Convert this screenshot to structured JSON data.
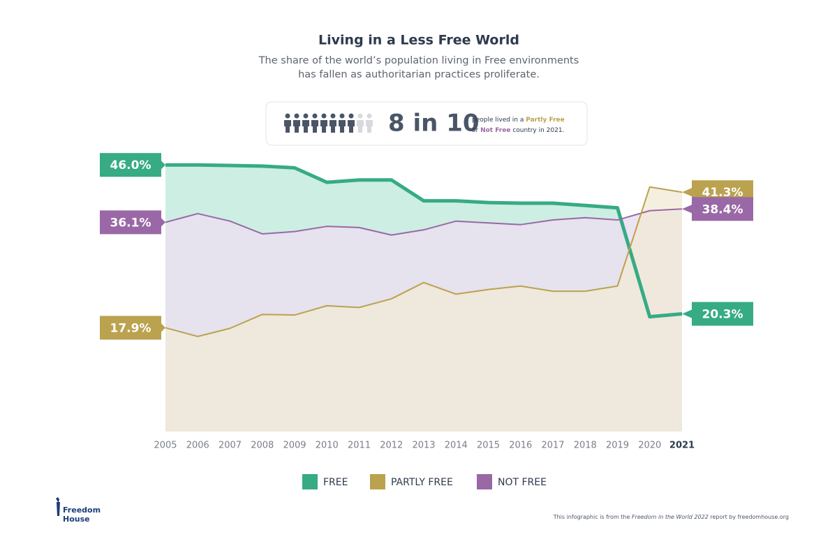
{
  "chart_data": {
    "type": "area-line",
    "title": "Living in a Less Free World",
    "subtitle": [
      "The share of the world’s population living in Free environments",
      "has fallen as authoritarian practices proliferate."
    ],
    "callout": {
      "highlight": "8 in 10",
      "icons_filled": 8,
      "icons_total": 10,
      "text_line1": [
        "people lived in a ",
        "Partly Free"
      ],
      "text_line2": [
        "or ",
        "Not Free",
        " country in 2021."
      ]
    },
    "categories": [
      "2005",
      "2006",
      "2007",
      "2008",
      "2009",
      "2010",
      "2011",
      "2012",
      "2013",
      "2014",
      "2015",
      "2016",
      "2017",
      "2018",
      "2019",
      "2020",
      "2021"
    ],
    "ylim": [
      0,
      50
    ],
    "series": [
      {
        "name": "FREE",
        "color": "#36ab84",
        "fill": "#cdeee3",
        "values": [
          46.0,
          46.0,
          45.9,
          45.8,
          45.5,
          43.0,
          43.4,
          43.4,
          39.8,
          39.8,
          39.5,
          39.4,
          39.4,
          39.0,
          38.6,
          19.8,
          20.3
        ],
        "value_labels": [
          "46.0%",
          null,
          null,
          null,
          null,
          null,
          null,
          null,
          null,
          null,
          null,
          null,
          null,
          null,
          null,
          null,
          "20.3%"
        ]
      },
      {
        "name": "PARTLY FREE",
        "color": "#bba24f",
        "fill": "#f1ead6",
        "values": [
          17.9,
          16.4,
          17.8,
          20.2,
          20.1,
          21.7,
          21.4,
          22.9,
          25.7,
          23.7,
          24.5,
          25.1,
          24.2,
          24.2,
          25.1,
          42.2,
          41.3
        ],
        "value_labels": [
          "17.9%",
          null,
          null,
          null,
          null,
          null,
          null,
          null,
          null,
          null,
          null,
          null,
          null,
          null,
          null,
          null,
          "41.3%"
        ]
      },
      {
        "name": "NOT FREE",
        "color": "#9a68a6",
        "fill": "#eadff0",
        "values": [
          36.1,
          37.6,
          36.3,
          34.1,
          34.5,
          35.4,
          35.2,
          33.9,
          34.8,
          36.3,
          36.0,
          35.7,
          36.5,
          36.9,
          36.5,
          38.1,
          38.4
        ],
        "value_labels": [
          "36.1%",
          null,
          null,
          null,
          null,
          null,
          null,
          null,
          null,
          null,
          null,
          null,
          null,
          null,
          null,
          null,
          "38.4%"
        ]
      }
    ],
    "footer": {
      "logo": [
        "Freedom",
        "House"
      ],
      "note": [
        "This infographic is from the ",
        "Freedom in the World 2022",
        " report by freedomhouse.org"
      ]
    }
  }
}
